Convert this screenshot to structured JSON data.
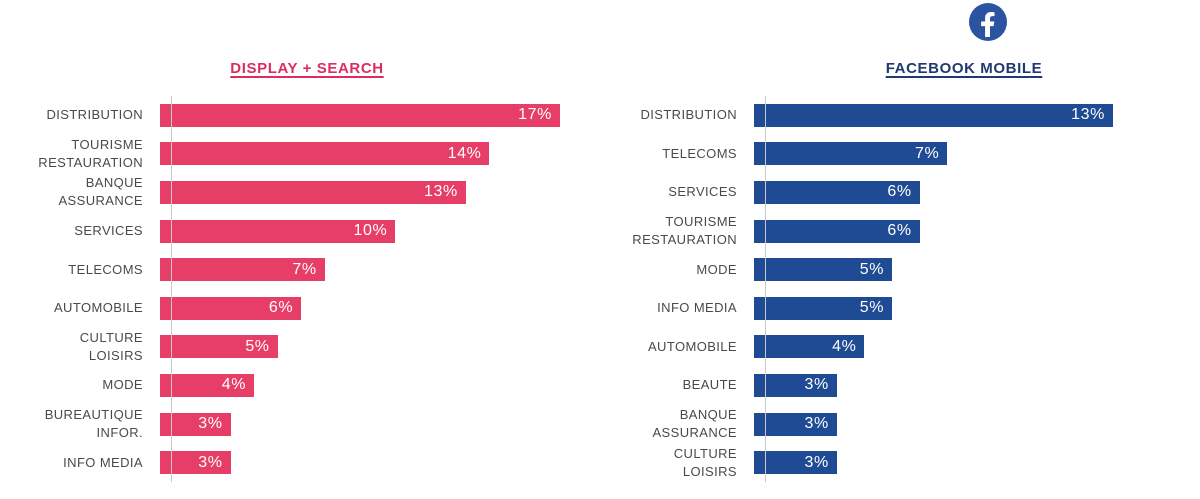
{
  "page": {
    "background": "#ffffff"
  },
  "styles": {
    "label_color": "#4a4a4a",
    "axis_color": "#c9c9c9",
    "value_text_color": "#ffffff"
  },
  "facebook_badge": {
    "icon": "facebook-icon",
    "circle_color": "#2a53a0",
    "glyph_color": "#ffffff"
  },
  "chart_data": [
    {
      "type": "bar",
      "orientation": "horizontal",
      "title": "DISPLAY + SEARCH",
      "title_color": "#dc2e5e",
      "bar_color": "#e73e68",
      "categories": [
        "DISTRIBUTION",
        "TOURISME\nRESTAURATION",
        "BANQUE\nASSURANCE",
        "SERVICES",
        "TELECOMS",
        "AUTOMOBILE",
        "CULTURE LOISIRS",
        "MODE",
        "BUREAUTIQUE\nINFOR.",
        "INFO MEDIA"
      ],
      "values": [
        17,
        14,
        13,
        10,
        7,
        6,
        5,
        4,
        3,
        3
      ],
      "value_labels": [
        "17%",
        "14%",
        "13%",
        "10%",
        "7%",
        "6%",
        "5%",
        "4%",
        "3%",
        "3%"
      ],
      "xlim": [
        0,
        17
      ],
      "value_label_position": "inside-right",
      "grid": false,
      "legend": false
    },
    {
      "type": "bar",
      "orientation": "horizontal",
      "title": "FACEBOOK MOBILE",
      "title_color": "#1e3a70",
      "bar_color": "#1f4b94",
      "categories": [
        "DISTRIBUTION",
        "TELECOMS",
        "SERVICES",
        "TOURISME\nRESTAURATION",
        "MODE",
        "INFO MEDIA",
        "AUTOMOBILE",
        "BEAUTE",
        "BANQUE\nASSURANCE",
        "CULTURE LOISIRS"
      ],
      "values": [
        13,
        7,
        6,
        6,
        5,
        5,
        4,
        3,
        3,
        3
      ],
      "value_labels": [
        "13%",
        "7%",
        "6%",
        "6%",
        "5%",
        "5%",
        "4%",
        "3%",
        "3%",
        "3%"
      ],
      "xlim": [
        0,
        13
      ],
      "value_label_position": "inside-right",
      "grid": false,
      "legend": false
    }
  ]
}
